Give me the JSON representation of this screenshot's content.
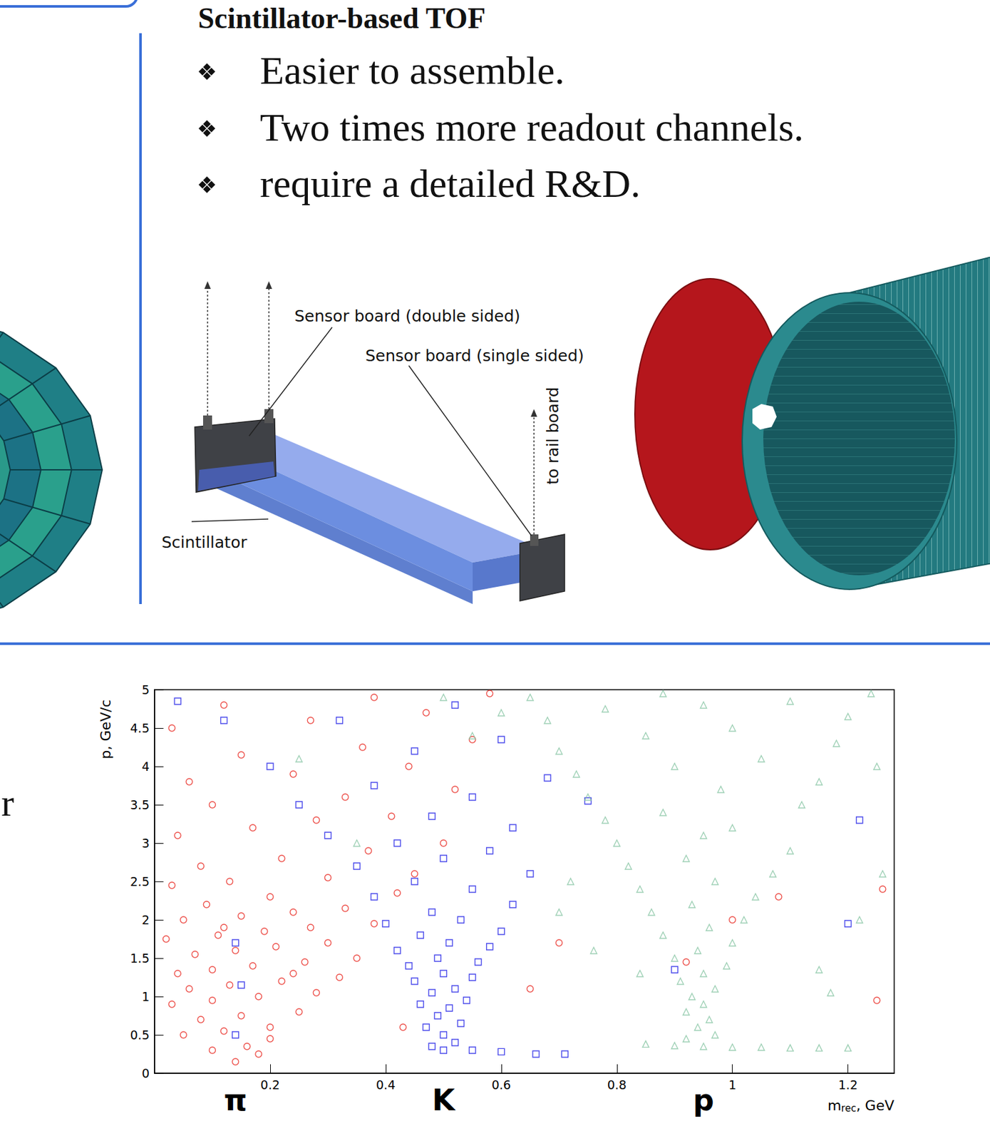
{
  "header": {
    "title": "Scintillator-based TOF"
  },
  "bullets": [
    "Easier to assemble.",
    "Two times more readout channels.",
    "require a detailed R&D."
  ],
  "diagram": {
    "labels": {
      "double_board": "Sensor board (double sided)",
      "single_board": "Sensor board (single sided)",
      "scintillator": "Scintillator",
      "rail": "to rail board"
    }
  },
  "left_fragment": "r",
  "chart_data": {
    "type": "scatter",
    "x_label": {
      "base": "m",
      "sub": "rec",
      "rest": ", GeV"
    },
    "y_label": "p, GeV/c",
    "xlim": [
      0,
      1.28
    ],
    "xticks": [
      0.2,
      0.4,
      0.6,
      0.8,
      1,
      1.2
    ],
    "ylim": [
      0,
      5
    ],
    "yticks": [
      0,
      0.5,
      1,
      1.5,
      2,
      2.5,
      3,
      3.5,
      4,
      4.5,
      5
    ],
    "grid": false,
    "series": [
      {
        "name": "π",
        "label_x": 0.14,
        "color": "#e8251e",
        "marker": "circle",
        "values": [
          [
            0.14,
            0.15
          ],
          [
            0.1,
            0.3
          ],
          [
            0.16,
            0.35
          ],
          [
            0.05,
            0.5
          ],
          [
            0.12,
            0.55
          ],
          [
            0.2,
            0.6
          ],
          [
            0.08,
            0.7
          ],
          [
            0.15,
            0.75
          ],
          [
            0.25,
            0.8
          ],
          [
            0.03,
            0.9
          ],
          [
            0.1,
            0.95
          ],
          [
            0.18,
            1.0
          ],
          [
            0.28,
            1.05
          ],
          [
            0.06,
            1.1
          ],
          [
            0.13,
            1.15
          ],
          [
            0.22,
            1.2
          ],
          [
            0.32,
            1.25
          ],
          [
            0.04,
            1.3
          ],
          [
            0.1,
            1.35
          ],
          [
            0.17,
            1.4
          ],
          [
            0.26,
            1.45
          ],
          [
            0.35,
            1.5
          ],
          [
            0.07,
            1.55
          ],
          [
            0.14,
            1.6
          ],
          [
            0.21,
            1.65
          ],
          [
            0.3,
            1.7
          ],
          [
            0.02,
            1.75
          ],
          [
            0.11,
            1.8
          ],
          [
            0.19,
            1.85
          ],
          [
            0.27,
            1.9
          ],
          [
            0.38,
            1.95
          ],
          [
            0.05,
            2.0
          ],
          [
            0.15,
            2.05
          ],
          [
            0.24,
            2.1
          ],
          [
            0.33,
            2.15
          ],
          [
            0.09,
            2.2
          ],
          [
            0.2,
            2.3
          ],
          [
            0.42,
            2.35
          ],
          [
            0.03,
            2.45
          ],
          [
            0.13,
            2.5
          ],
          [
            0.3,
            2.55
          ],
          [
            0.45,
            2.6
          ],
          [
            0.08,
            2.7
          ],
          [
            0.22,
            2.8
          ],
          [
            0.37,
            2.9
          ],
          [
            0.5,
            3.0
          ],
          [
            0.04,
            3.1
          ],
          [
            0.17,
            3.2
          ],
          [
            0.28,
            3.3
          ],
          [
            0.41,
            3.35
          ],
          [
            0.1,
            3.5
          ],
          [
            0.33,
            3.6
          ],
          [
            0.52,
            3.7
          ],
          [
            0.06,
            3.8
          ],
          [
            0.24,
            3.9
          ],
          [
            0.44,
            4.0
          ],
          [
            0.15,
            4.15
          ],
          [
            0.36,
            4.25
          ],
          [
            0.55,
            4.35
          ],
          [
            0.03,
            4.5
          ],
          [
            0.27,
            4.6
          ],
          [
            0.47,
            4.7
          ],
          [
            0.12,
            4.8
          ],
          [
            0.38,
            4.9
          ],
          [
            0.58,
            4.95
          ],
          [
            0.2,
            0.45
          ],
          [
            0.18,
            0.25
          ],
          [
            0.24,
            1.3
          ],
          [
            0.12,
            1.9
          ],
          [
            0.7,
            1.7
          ],
          [
            0.65,
            1.1
          ],
          [
            0.92,
            1.45
          ],
          [
            1.25,
            0.95
          ],
          [
            1.08,
            2.3
          ],
          [
            1.26,
            2.4
          ],
          [
            1.0,
            2.0
          ],
          [
            0.43,
            0.6
          ]
        ]
      },
      {
        "name": "K",
        "label_x": 0.5,
        "color": "#1c1ce6",
        "marker": "square",
        "values": [
          [
            0.5,
            0.3
          ],
          [
            0.48,
            0.35
          ],
          [
            0.52,
            0.4
          ],
          [
            0.55,
            0.3
          ],
          [
            0.6,
            0.28
          ],
          [
            0.5,
            0.5
          ],
          [
            0.47,
            0.6
          ],
          [
            0.53,
            0.65
          ],
          [
            0.49,
            0.75
          ],
          [
            0.51,
            0.85
          ],
          [
            0.46,
            0.9
          ],
          [
            0.54,
            0.95
          ],
          [
            0.48,
            1.05
          ],
          [
            0.52,
            1.1
          ],
          [
            0.45,
            1.2
          ],
          [
            0.55,
            1.25
          ],
          [
            0.5,
            1.3
          ],
          [
            0.44,
            1.4
          ],
          [
            0.56,
            1.45
          ],
          [
            0.49,
            1.5
          ],
          [
            0.42,
            1.6
          ],
          [
            0.58,
            1.65
          ],
          [
            0.51,
            1.7
          ],
          [
            0.46,
            1.8
          ],
          [
            0.6,
            1.85
          ],
          [
            0.4,
            1.95
          ],
          [
            0.53,
            2.0
          ],
          [
            0.48,
            2.1
          ],
          [
            0.62,
            2.2
          ],
          [
            0.38,
            2.3
          ],
          [
            0.55,
            2.4
          ],
          [
            0.45,
            2.5
          ],
          [
            0.65,
            2.6
          ],
          [
            0.35,
            2.7
          ],
          [
            0.5,
            2.8
          ],
          [
            0.58,
            2.9
          ],
          [
            0.42,
            3.0
          ],
          [
            0.3,
            3.1
          ],
          [
            0.62,
            3.2
          ],
          [
            0.48,
            3.35
          ],
          [
            0.25,
            3.5
          ],
          [
            0.55,
            3.6
          ],
          [
            0.38,
            3.75
          ],
          [
            0.68,
            3.85
          ],
          [
            0.2,
            4.0
          ],
          [
            0.45,
            4.2
          ],
          [
            0.6,
            4.35
          ],
          [
            0.32,
            4.6
          ],
          [
            0.52,
            4.8
          ],
          [
            0.15,
            1.15
          ],
          [
            0.14,
            0.5
          ],
          [
            0.14,
            1.7
          ],
          [
            0.71,
            0.25
          ],
          [
            0.66,
            0.25
          ],
          [
            0.75,
            3.55
          ],
          [
            0.9,
            1.35
          ],
          [
            1.2,
            1.95
          ],
          [
            1.22,
            3.3
          ],
          [
            0.04,
            4.85
          ],
          [
            0.12,
            4.6
          ]
        ]
      },
      {
        "name": "p",
        "label_x": 0.95,
        "color": "#86c4a3",
        "marker": "triangle",
        "values": [
          [
            0.85,
            0.38
          ],
          [
            0.9,
            0.36
          ],
          [
            0.95,
            0.35
          ],
          [
            1.0,
            0.34
          ],
          [
            1.05,
            0.34
          ],
          [
            1.1,
            0.33
          ],
          [
            1.15,
            0.33
          ],
          [
            1.2,
            0.33
          ],
          [
            0.92,
            0.45
          ],
          [
            0.97,
            0.5
          ],
          [
            0.94,
            0.6
          ],
          [
            0.96,
            0.7
          ],
          [
            0.92,
            0.8
          ],
          [
            0.95,
            0.9
          ],
          [
            0.93,
            1.0
          ],
          [
            0.97,
            1.1
          ],
          [
            0.91,
            1.2
          ],
          [
            0.95,
            1.3
          ],
          [
            0.99,
            1.4
          ],
          [
            0.9,
            1.5
          ],
          [
            0.94,
            1.6
          ],
          [
            1.0,
            1.7
          ],
          [
            0.88,
            1.8
          ],
          [
            0.96,
            1.9
          ],
          [
            1.02,
            2.0
          ],
          [
            0.86,
            2.1
          ],
          [
            0.93,
            2.2
          ],
          [
            1.04,
            2.3
          ],
          [
            0.84,
            2.4
          ],
          [
            0.97,
            2.5
          ],
          [
            1.07,
            2.6
          ],
          [
            0.82,
            2.7
          ],
          [
            0.92,
            2.8
          ],
          [
            1.1,
            2.9
          ],
          [
            0.8,
            3.0
          ],
          [
            0.95,
            3.1
          ],
          [
            1.0,
            3.2
          ],
          [
            0.78,
            3.3
          ],
          [
            0.88,
            3.4
          ],
          [
            1.12,
            3.5
          ],
          [
            0.75,
            3.6
          ],
          [
            0.98,
            3.7
          ],
          [
            1.15,
            3.8
          ],
          [
            0.73,
            3.9
          ],
          [
            0.9,
            4.0
          ],
          [
            1.05,
            4.1
          ],
          [
            0.7,
            4.2
          ],
          [
            1.18,
            4.3
          ],
          [
            0.85,
            4.4
          ],
          [
            1.0,
            4.5
          ],
          [
            0.68,
            4.6
          ],
          [
            1.2,
            4.65
          ],
          [
            0.78,
            4.75
          ],
          [
            0.95,
            4.8
          ],
          [
            1.1,
            4.85
          ],
          [
            0.65,
            4.9
          ],
          [
            0.88,
            4.95
          ],
          [
            1.24,
            4.95
          ],
          [
            0.6,
            4.7
          ],
          [
            0.55,
            4.4
          ],
          [
            0.72,
            2.5
          ],
          [
            0.7,
            2.1
          ],
          [
            1.22,
            2.0
          ],
          [
            1.26,
            2.6
          ],
          [
            0.76,
            1.6
          ],
          [
            0.35,
            3.0
          ],
          [
            0.25,
            4.1
          ],
          [
            1.15,
            1.35
          ],
          [
            1.25,
            4.0
          ],
          [
            0.5,
            4.9
          ],
          [
            1.17,
            1.05
          ],
          [
            0.84,
            1.3
          ]
        ]
      }
    ]
  }
}
